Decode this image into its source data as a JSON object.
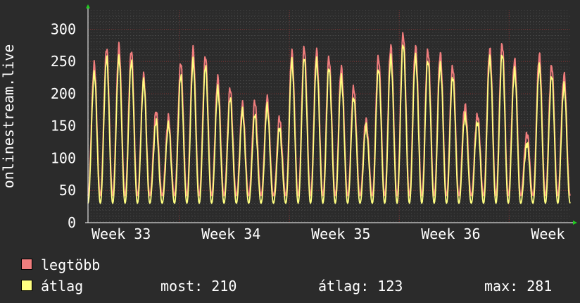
{
  "colors": {
    "background": "#2b2b2b",
    "plot_background": "#2b2b2b",
    "grid_minor": "#4a4a4a",
    "grid_major": "#7a2f2f",
    "axis": "#ffffff",
    "axis_arrow": "#22cc22",
    "text": "#ffffff",
    "max_series": "#f07d7d",
    "avg_series": "#ffff80"
  },
  "chart_data": {
    "type": "line",
    "ylabel": "onlinestream.live",
    "ylim": [
      0,
      330
    ],
    "yticks": [
      0,
      50,
      100,
      150,
      200,
      250,
      300
    ],
    "x_range_days": [
      0,
      39.5
    ],
    "xticks": [
      {
        "label": "Week 33",
        "day": 0
      },
      {
        "label": "Week 34",
        "day": 9
      },
      {
        "label": "Week 35",
        "day": 18
      },
      {
        "label": "Week 36",
        "day": 27
      },
      {
        "label": "Week",
        "day": 36
      }
    ],
    "major_grid_days": [
      7.5,
      16.5,
      25.5,
      34.5
    ],
    "grid": true,
    "samples_per_day": 24,
    "legend_position": "bottom-left",
    "series": [
      {
        "name": "legtöbb",
        "color": "#f07d7d",
        "daily_peaks": [
          245,
          270,
          272,
          265,
          225,
          170,
          160,
          245,
          265,
          255,
          220,
          205,
          180,
          185,
          190,
          160,
          262,
          270,
          265,
          255,
          240,
          210,
          160,
          258,
          275,
          295,
          275,
          270,
          265,
          245,
          185,
          170,
          272,
          280,
          255,
          140,
          262,
          245,
          230
        ]
      },
      {
        "name": "átlag",
        "color": "#ffff80",
        "daily_peaks": [
          232,
          255,
          255,
          248,
          218,
          155,
          150,
          225,
          248,
          240,
          205,
          190,
          170,
          165,
          178,
          145,
          248,
          255,
          250,
          240,
          225,
          195,
          150,
          240,
          258,
          280,
          260,
          255,
          248,
          230,
          170,
          160,
          258,
          265,
          240,
          125,
          245,
          230,
          215
        ]
      }
    ]
  },
  "legend": {
    "max_label": "legtöbb",
    "avg_label": "átlag",
    "current_text": "most: 210",
    "average_text": "átlag: 123",
    "maximum_text": "max: 281"
  }
}
